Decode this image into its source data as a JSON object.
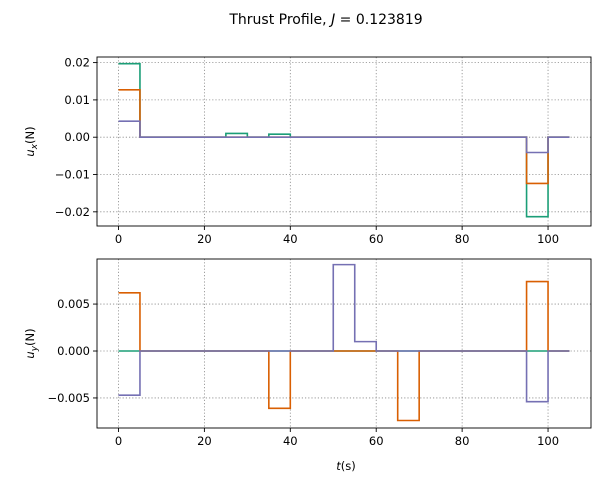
{
  "chart_data": {
    "title": "Thrust Profile, J = 0.123819",
    "title_parts": {
      "prefix": "Thrust Profile, ",
      "var": "J",
      "suffix": " = 0.123819"
    },
    "type": "line",
    "step": "post",
    "grid": true,
    "x": [
      0,
      5,
      25,
      30,
      35,
      40,
      50,
      55,
      60,
      65,
      70,
      95,
      100,
      105
    ],
    "xlim": [
      -5,
      110
    ],
    "xticks": [
      0,
      20,
      40,
      60,
      80,
      100
    ],
    "xtick_labels": [
      "0",
      "20",
      "40",
      "60",
      "80",
      "100"
    ],
    "xlabel": {
      "main": "t",
      "paren": "(s)"
    },
    "colors": {
      "green": "#1b9e77",
      "orange": "#d95f02",
      "purple": "#7570b3",
      "grid": "#888888"
    },
    "subplots": [
      {
        "ylabel": {
          "main": "u",
          "sub": "x",
          "paren": "(N)"
        },
        "ylim": [
          -0.0238,
          0.0215
        ],
        "yticks": [
          0.02,
          0.01,
          0.0,
          -0.01,
          -0.02
        ],
        "ytick_labels": [
          "0.02",
          "0.01",
          "0.00",
          "−0.01",
          "−0.02"
        ],
        "series": [
          {
            "color_key": "green",
            "values": [
              0.0197,
              0,
              0.001,
              0,
              0.0008,
              0,
              0,
              0,
              0,
              0,
              0,
              -0.0213,
              0,
              0
            ]
          },
          {
            "color_key": "orange",
            "values": [
              0.0127,
              0,
              0,
              0,
              0,
              0,
              0,
              0,
              0,
              0,
              0,
              -0.0124,
              0,
              0
            ]
          },
          {
            "color_key": "purple",
            "values": [
              0.0043,
              0,
              0,
              0,
              0,
              0,
              0,
              0,
              0,
              0,
              0,
              -0.0041,
              0,
              0
            ]
          }
        ]
      },
      {
        "ylabel": {
          "main": "u",
          "sub": "y",
          "paren": "(N)"
        },
        "ylim": [
          -0.0082,
          0.0098
        ],
        "yticks": [
          0.005,
          0.0,
          -0.005
        ],
        "ytick_labels": [
          "0.005",
          "0.000",
          "−0.005"
        ],
        "series": [
          {
            "color_key": "green",
            "values": [
              0,
              0,
              0,
              0,
              0,
              0,
              0,
              0,
              0,
              0,
              0,
              0,
              0,
              0
            ]
          },
          {
            "color_key": "orange",
            "values": [
              0.0062,
              0,
              0,
              0,
              -0.0061,
              0,
              0,
              0,
              0,
              -0.0074,
              0,
              0.0074,
              0,
              0
            ]
          },
          {
            "color_key": "purple",
            "values": [
              -0.0047,
              0,
              0,
              0,
              0,
              0,
              0.0092,
              0.001,
              0,
              0,
              0,
              -0.0054,
              0,
              0
            ]
          }
        ]
      }
    ]
  }
}
